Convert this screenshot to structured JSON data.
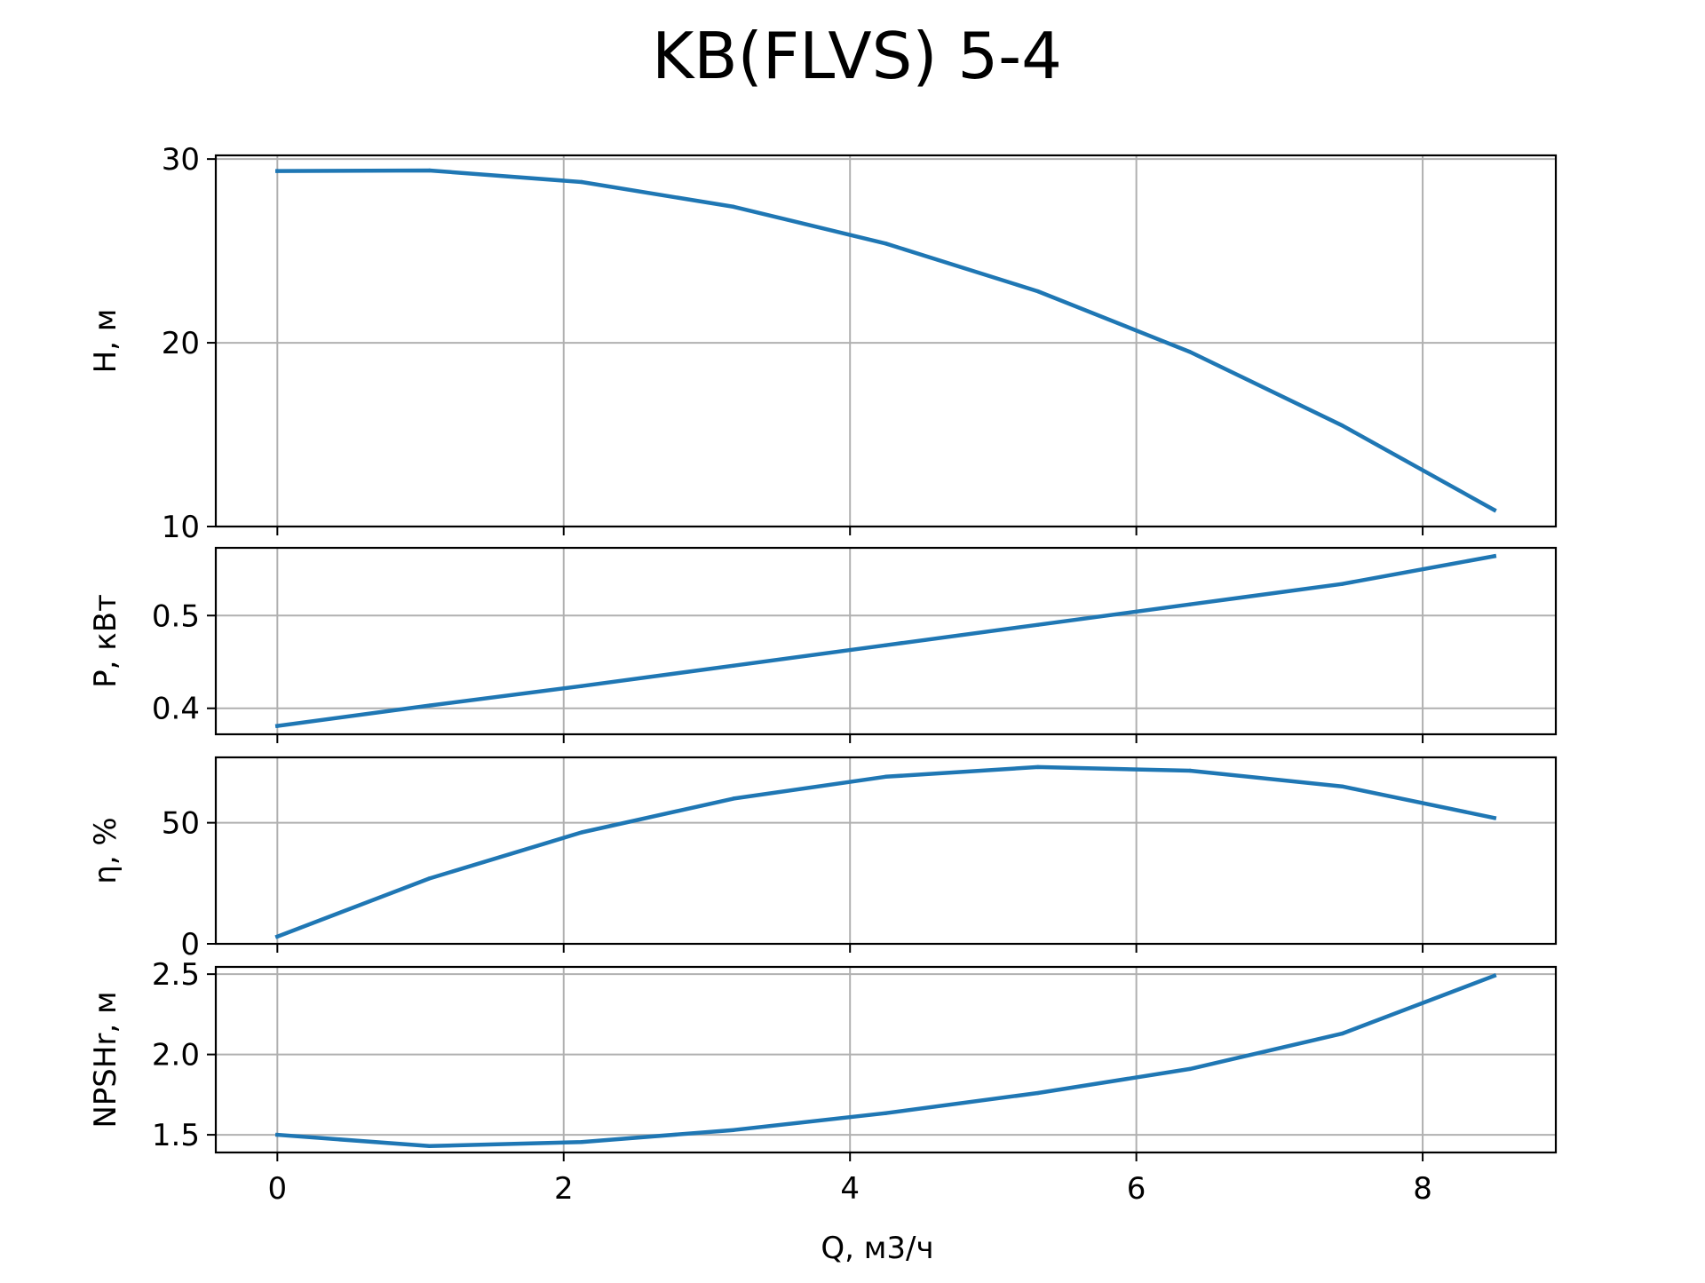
{
  "title": "KB(FLVS) 5-4",
  "colors": {
    "line": "#1f77b4",
    "grid": "#b0b0b0",
    "axes": "#000000",
    "background": "#ffffff"
  },
  "chart_data": {
    "type": "line",
    "layout": "stacked-subplots-shared-x",
    "grid": true,
    "xlabel": "Q, м3/ч",
    "xlim": [
      -0.43,
      8.93
    ],
    "xticks": [
      0,
      2,
      4,
      6,
      8
    ],
    "xtick_labels": [
      "0",
      "2",
      "4",
      "6",
      "8"
    ],
    "x": [
      0,
      1.0625,
      2.125,
      3.1875,
      4.25,
      5.3125,
      6.375,
      7.4375,
      8.5
    ],
    "panels": [
      {
        "ylabel": "H, м",
        "ylim": [
          10,
          30.2
        ],
        "yticks": [
          10,
          20,
          30
        ],
        "ytick_labels": [
          "10",
          "20",
          "30"
        ],
        "values": [
          29.35,
          29.38,
          28.75,
          27.4,
          25.4,
          22.8,
          19.5,
          15.5,
          10.9
        ]
      },
      {
        "ylabel": "P, кВт",
        "ylim": [
          0.372,
          0.573
        ],
        "yticks": [
          0.4,
          0.5
        ],
        "ytick_labels": [
          "0.4",
          "0.5"
        ],
        "values": [
          0.381,
          0.403,
          0.424,
          0.446,
          0.468,
          0.49,
          0.512,
          0.534,
          0.564
        ]
      },
      {
        "ylabel": "η, %",
        "ylim": [
          0,
          77
        ],
        "yticks": [
          0,
          50
        ],
        "ytick_labels": [
          "0",
          "50"
        ],
        "values": [
          3,
          27,
          46,
          60,
          69,
          73,
          71.5,
          65,
          52
        ]
      },
      {
        "ylabel": "NPSHr, м",
        "ylim": [
          1.39,
          2.545
        ],
        "yticks": [
          1.5,
          2.0,
          2.5
        ],
        "ytick_labels": [
          "1.5",
          "2.0",
          "2.5"
        ],
        "values": [
          1.5,
          1.43,
          1.455,
          1.53,
          1.635,
          1.76,
          1.91,
          2.13,
          2.49
        ]
      }
    ]
  }
}
